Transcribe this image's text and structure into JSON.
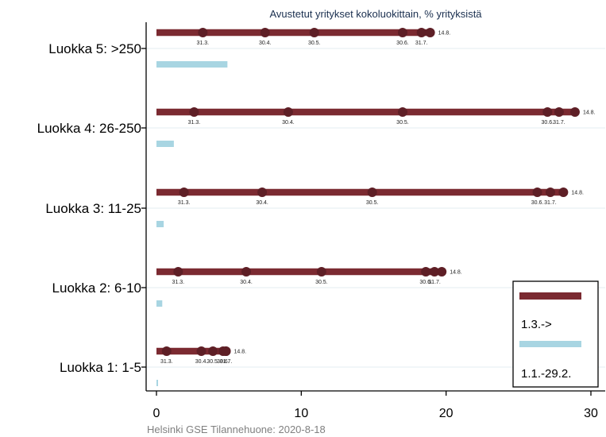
{
  "chart_data": {
    "type": "dot-range",
    "title": "Avustetut yritykset kokoluokittain, % yrityksistä",
    "caption": "Helsinki GSE Tilannehuone: 2020-8-18",
    "xlim": [
      0,
      30
    ],
    "xticks": [
      "0",
      "10",
      "20",
      "30"
    ],
    "grid": true,
    "legend_position": "bottom-right",
    "colors": {
      "current": "#7b2a31",
      "previous": "#a8d5e2"
    },
    "legend": [
      {
        "label": "1.3.->",
        "color": "#7b2a31"
      },
      {
        "label": "1.1.-29.2.",
        "color": "#a8d5e2"
      }
    ],
    "categories": [
      {
        "label": "Luokka 5: >250",
        "previous": 4.9,
        "points": [
          {
            "date": "31.3.",
            "value": 3.2
          },
          {
            "date": "30.4.",
            "value": 7.5
          },
          {
            "date": "30.5.",
            "value": 10.9
          },
          {
            "date": "30.6.",
            "value": 17.0
          },
          {
            "date": "31.7.",
            "value": 18.3
          },
          {
            "date": "14.8.",
            "value": 18.9
          }
        ]
      },
      {
        "label": "Luokka 4: 26-250",
        "previous": 1.2,
        "points": [
          {
            "date": "31.3.",
            "value": 2.6
          },
          {
            "date": "30.4.",
            "value": 9.1
          },
          {
            "date": "30.5.",
            "value": 17.0
          },
          {
            "date": "30.6.",
            "value": 27.0
          },
          {
            "date": "31.7.",
            "value": 27.8
          },
          {
            "date": "14.8.",
            "value": 28.9
          }
        ]
      },
      {
        "label": "Luokka 3: 11-25",
        "previous": 0.5,
        "points": [
          {
            "date": "31.3.",
            "value": 1.9
          },
          {
            "date": "30.4.",
            "value": 7.3
          },
          {
            "date": "30.5.",
            "value": 14.9
          },
          {
            "date": "30.6.",
            "value": 26.3
          },
          {
            "date": "31.7.",
            "value": 27.2
          },
          {
            "date": "14.8.",
            "value": 28.1
          }
        ]
      },
      {
        "label": "Luokka 2: 6-10",
        "previous": 0.4,
        "points": [
          {
            "date": "31.3.",
            "value": 1.5
          },
          {
            "date": "30.4.",
            "value": 6.2
          },
          {
            "date": "30.5.",
            "value": 11.4
          },
          {
            "date": "30.6.",
            "value": 18.6
          },
          {
            "date": "31.7.",
            "value": 19.2
          },
          {
            "date": "14.8.",
            "value": 19.7
          }
        ]
      },
      {
        "label": "Luokka 1: 1-5",
        "previous": 0.1,
        "points": [
          {
            "date": "31.3.",
            "value": 0.7
          },
          {
            "date": "30.4.",
            "value": 3.1
          },
          {
            "date": "30.5.",
            "value": 3.9
          },
          {
            "date": "30.6.",
            "value": 4.6
          },
          {
            "date": "31.7.",
            "value": 4.8
          },
          {
            "date": "14.8.",
            "value": 4.8
          }
        ]
      }
    ]
  }
}
